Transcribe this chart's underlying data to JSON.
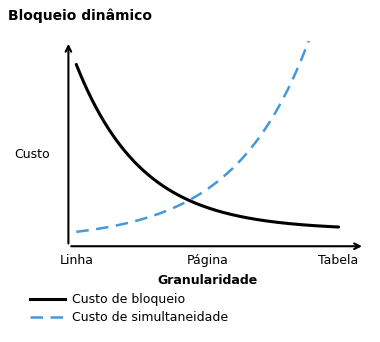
{
  "title": "Bloqueio dinâmico",
  "xlabel": "Granularidade",
  "ylabel": "Custo",
  "xtick_labels": [
    "Linha",
    "Página",
    "Tabela"
  ],
  "bloqueio_color": "#000000",
  "simultaneidade_color": "#4499dd",
  "background_color": "#ffffff",
  "legend_bloqueio": "Custo de bloqueio",
  "legend_simultaneidade": "Custo de simultaneidade",
  "num_xticks": 22,
  "title_fontsize": 10,
  "label_fontsize": 9,
  "legend_fontsize": 9,
  "ylabel_fontsize": 9
}
